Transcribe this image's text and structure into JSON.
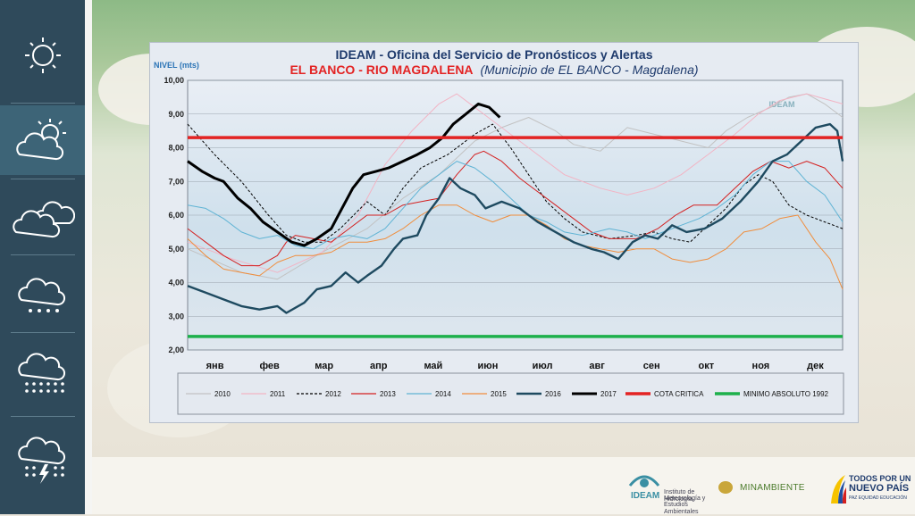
{
  "chart_data": {
    "type": "line",
    "title": "IDEAM - Oficina del Servicio de Pronósticos y Alertas",
    "subtitle_bold": "EL BANCO - RIO MAGDALENA",
    "subtitle_italic": "(Municipio de EL BANCO - Magdalena)",
    "ylabel": "NIVEL (mts)",
    "ylim": [
      2,
      10
    ],
    "yticks": [
      "10,00",
      "9,00",
      "8,00",
      "7,00",
      "6,00",
      "5,00",
      "4,00",
      "3,00",
      "2,00"
    ],
    "months": [
      "янв",
      "фев",
      "мар",
      "апр",
      "май",
      "июн",
      "июл",
      "авг",
      "сен",
      "окт",
      "ноя",
      "дек"
    ],
    "x_day_range": [
      0,
      365
    ],
    "thresholds": [
      {
        "name": "COTA CRITICA",
        "value": 8.3,
        "color": "#e32323"
      },
      {
        "name": "MINIMO ABSOLUTO 1992",
        "value": 2.4,
        "color": "#1db04b"
      }
    ],
    "series": [
      {
        "name": "2010",
        "color": "#c2c2c2",
        "width": 1,
        "dash": "",
        "points": [
          [
            0,
            5.0
          ],
          [
            30,
            4.3
          ],
          [
            50,
            4.1
          ],
          [
            75,
            4.9
          ],
          [
            100,
            5.6
          ],
          [
            120,
            6.5
          ],
          [
            140,
            7.2
          ],
          [
            160,
            8.2
          ],
          [
            175,
            8.6
          ],
          [
            190,
            8.9
          ],
          [
            205,
            8.5
          ],
          [
            215,
            8.1
          ],
          [
            230,
            7.9
          ],
          [
            245,
            8.6
          ],
          [
            260,
            8.4
          ],
          [
            275,
            8.2
          ],
          [
            290,
            8.0
          ],
          [
            300,
            8.5
          ],
          [
            312,
            8.9
          ],
          [
            325,
            9.2
          ],
          [
            335,
            9.5
          ],
          [
            345,
            9.6
          ],
          [
            355,
            9.3
          ],
          [
            365,
            8.9
          ]
        ]
      },
      {
        "name": "2011",
        "color": "#f2b4c4",
        "width": 1,
        "dash": "",
        "points": [
          [
            0,
            5.2
          ],
          [
            25,
            4.7
          ],
          [
            50,
            4.3
          ],
          [
            75,
            4.9
          ],
          [
            95,
            6.0
          ],
          [
            110,
            7.5
          ],
          [
            125,
            8.5
          ],
          [
            140,
            9.3
          ],
          [
            150,
            9.6
          ],
          [
            160,
            9.2
          ],
          [
            175,
            8.6
          ],
          [
            195,
            7.8
          ],
          [
            210,
            7.2
          ],
          [
            230,
            6.8
          ],
          [
            245,
            6.6
          ],
          [
            260,
            6.8
          ],
          [
            275,
            7.2
          ],
          [
            290,
            7.8
          ],
          [
            305,
            8.4
          ],
          [
            318,
            9.0
          ],
          [
            330,
            9.4
          ],
          [
            345,
            9.6
          ],
          [
            365,
            9.3
          ]
        ]
      },
      {
        "name": "2012",
        "color": "#000000",
        "width": 1,
        "dash": "3,2",
        "points": [
          [
            0,
            8.7
          ],
          [
            15,
            7.8
          ],
          [
            30,
            7.0
          ],
          [
            45,
            6.0
          ],
          [
            55,
            5.4
          ],
          [
            65,
            5.2
          ],
          [
            75,
            5.2
          ],
          [
            85,
            5.6
          ],
          [
            100,
            6.4
          ],
          [
            110,
            6.0
          ],
          [
            120,
            6.8
          ],
          [
            130,
            7.4
          ],
          [
            145,
            7.8
          ],
          [
            160,
            8.4
          ],
          [
            170,
            8.7
          ],
          [
            180,
            8.0
          ],
          [
            190,
            7.2
          ],
          [
            200,
            6.4
          ],
          [
            210,
            5.9
          ],
          [
            220,
            5.5
          ],
          [
            235,
            5.3
          ],
          [
            250,
            5.4
          ],
          [
            260,
            5.5
          ],
          [
            270,
            5.3
          ],
          [
            280,
            5.2
          ],
          [
            290,
            5.7
          ],
          [
            300,
            6.2
          ],
          [
            310,
            6.9
          ],
          [
            318,
            7.2
          ],
          [
            326,
            7.0
          ],
          [
            335,
            6.3
          ],
          [
            345,
            6.0
          ],
          [
            355,
            5.8
          ],
          [
            365,
            5.6
          ]
        ]
      },
      {
        "name": "2013",
        "color": "#d42020",
        "width": 1,
        "dash": "",
        "points": [
          [
            0,
            5.6
          ],
          [
            10,
            5.2
          ],
          [
            20,
            4.8
          ],
          [
            30,
            4.5
          ],
          [
            40,
            4.5
          ],
          [
            50,
            4.8
          ],
          [
            55,
            5.2
          ],
          [
            60,
            5.4
          ],
          [
            70,
            5.3
          ],
          [
            80,
            5.2
          ],
          [
            90,
            5.6
          ],
          [
            100,
            6.0
          ],
          [
            110,
            6.0
          ],
          [
            120,
            6.3
          ],
          [
            130,
            6.4
          ],
          [
            140,
            6.5
          ],
          [
            150,
            7.2
          ],
          [
            160,
            7.8
          ],
          [
            165,
            7.9
          ],
          [
            175,
            7.6
          ],
          [
            185,
            7.1
          ],
          [
            195,
            6.7
          ],
          [
            205,
            6.3
          ],
          [
            215,
            5.9
          ],
          [
            225,
            5.5
          ],
          [
            235,
            5.3
          ],
          [
            250,
            5.3
          ],
          [
            262,
            5.6
          ],
          [
            272,
            6.0
          ],
          [
            282,
            6.3
          ],
          [
            295,
            6.3
          ],
          [
            305,
            6.8
          ],
          [
            315,
            7.3
          ],
          [
            325,
            7.6
          ],
          [
            335,
            7.4
          ],
          [
            345,
            7.6
          ],
          [
            355,
            7.4
          ],
          [
            365,
            6.8
          ]
        ]
      },
      {
        "name": "2014",
        "color": "#5fb3d4",
        "width": 1,
        "dash": "",
        "points": [
          [
            0,
            6.3
          ],
          [
            10,
            6.2
          ],
          [
            20,
            5.9
          ],
          [
            30,
            5.5
          ],
          [
            40,
            5.3
          ],
          [
            50,
            5.4
          ],
          [
            60,
            5.1
          ],
          [
            70,
            5.0
          ],
          [
            80,
            5.3
          ],
          [
            90,
            5.4
          ],
          [
            100,
            5.3
          ],
          [
            110,
            5.6
          ],
          [
            120,
            6.2
          ],
          [
            130,
            6.8
          ],
          [
            140,
            7.2
          ],
          [
            150,
            7.6
          ],
          [
            160,
            7.4
          ],
          [
            170,
            7.0
          ],
          [
            180,
            6.5
          ],
          [
            190,
            6.0
          ],
          [
            200,
            5.8
          ],
          [
            210,
            5.5
          ],
          [
            220,
            5.4
          ],
          [
            235,
            5.6
          ],
          [
            245,
            5.5
          ],
          [
            255,
            5.3
          ],
          [
            265,
            5.5
          ],
          [
            275,
            5.7
          ],
          [
            285,
            5.9
          ],
          [
            295,
            6.2
          ],
          [
            305,
            6.6
          ],
          [
            315,
            7.2
          ],
          [
            325,
            7.6
          ],
          [
            335,
            7.6
          ],
          [
            345,
            7.0
          ],
          [
            355,
            6.6
          ],
          [
            365,
            5.8
          ]
        ]
      },
      {
        "name": "2015",
        "color": "#f08d3c",
        "width": 1,
        "dash": "",
        "points": [
          [
            0,
            5.3
          ],
          [
            10,
            4.8
          ],
          [
            20,
            4.4
          ],
          [
            30,
            4.3
          ],
          [
            40,
            4.2
          ],
          [
            50,
            4.6
          ],
          [
            60,
            4.8
          ],
          [
            70,
            4.8
          ],
          [
            80,
            4.9
          ],
          [
            90,
            5.2
          ],
          [
            100,
            5.2
          ],
          [
            110,
            5.3
          ],
          [
            120,
            5.6
          ],
          [
            130,
            6.0
          ],
          [
            140,
            6.3
          ],
          [
            150,
            6.3
          ],
          [
            160,
            6.0
          ],
          [
            170,
            5.8
          ],
          [
            180,
            6.0
          ],
          [
            190,
            6.0
          ],
          [
            200,
            5.7
          ],
          [
            210,
            5.3
          ],
          [
            220,
            5.1
          ],
          [
            230,
            5.0
          ],
          [
            240,
            4.9
          ],
          [
            250,
            5.0
          ],
          [
            260,
            5.0
          ],
          [
            270,
            4.7
          ],
          [
            280,
            4.6
          ],
          [
            290,
            4.7
          ],
          [
            300,
            5.0
          ],
          [
            310,
            5.5
          ],
          [
            320,
            5.6
          ],
          [
            330,
            5.9
          ],
          [
            340,
            6.0
          ],
          [
            350,
            5.2
          ],
          [
            358,
            4.7
          ],
          [
            365,
            3.8
          ]
        ]
      },
      {
        "name": "2016",
        "color": "#1e4a60",
        "width": 2.4,
        "dash": "",
        "points": [
          [
            0,
            3.9
          ],
          [
            10,
            3.7
          ],
          [
            20,
            3.5
          ],
          [
            30,
            3.3
          ],
          [
            40,
            3.2
          ],
          [
            50,
            3.3
          ],
          [
            55,
            3.1
          ],
          [
            65,
            3.4
          ],
          [
            72,
            3.8
          ],
          [
            80,
            3.9
          ],
          [
            88,
            4.3
          ],
          [
            95,
            4.0
          ],
          [
            100,
            4.2
          ],
          [
            108,
            4.5
          ],
          [
            115,
            5.0
          ],
          [
            120,
            5.3
          ],
          [
            128,
            5.4
          ],
          [
            133,
            6.0
          ],
          [
            140,
            6.5
          ],
          [
            146,
            7.1
          ],
          [
            152,
            6.8
          ],
          [
            160,
            6.6
          ],
          [
            166,
            6.2
          ],
          [
            175,
            6.4
          ],
          [
            185,
            6.2
          ],
          [
            195,
            5.8
          ],
          [
            205,
            5.5
          ],
          [
            215,
            5.2
          ],
          [
            225,
            5.0
          ],
          [
            232,
            4.9
          ],
          [
            240,
            4.7
          ],
          [
            248,
            5.2
          ],
          [
            255,
            5.4
          ],
          [
            262,
            5.3
          ],
          [
            270,
            5.7
          ],
          [
            278,
            5.5
          ],
          [
            288,
            5.6
          ],
          [
            298,
            5.9
          ],
          [
            308,
            6.4
          ],
          [
            318,
            7.0
          ],
          [
            326,
            7.6
          ],
          [
            334,
            7.8
          ],
          [
            342,
            8.2
          ],
          [
            350,
            8.6
          ],
          [
            358,
            8.7
          ],
          [
            362,
            8.5
          ],
          [
            365,
            7.6
          ]
        ]
      },
      {
        "name": "2017",
        "color": "#000000",
        "width": 3,
        "dash": "",
        "points": [
          [
            0,
            7.6
          ],
          [
            8,
            7.3
          ],
          [
            15,
            7.1
          ],
          [
            20,
            7.0
          ],
          [
            28,
            6.5
          ],
          [
            35,
            6.2
          ],
          [
            42,
            5.8
          ],
          [
            50,
            5.5
          ],
          [
            58,
            5.2
          ],
          [
            65,
            5.1
          ],
          [
            72,
            5.3
          ],
          [
            80,
            5.6
          ],
          [
            86,
            6.2
          ],
          [
            92,
            6.8
          ],
          [
            98,
            7.2
          ],
          [
            105,
            7.3
          ],
          [
            112,
            7.4
          ],
          [
            120,
            7.6
          ],
          [
            128,
            7.8
          ],
          [
            135,
            8.0
          ],
          [
            142,
            8.3
          ],
          [
            148,
            8.7
          ],
          [
            155,
            9.0
          ],
          [
            162,
            9.3
          ],
          [
            168,
            9.2
          ],
          [
            174,
            8.9
          ]
        ]
      }
    ]
  },
  "legend_labels": {
    "s2010": "2010",
    "s2011": "2011",
    "s2012": "2012",
    "s2013": "2013",
    "s2014": "2014",
    "s2015": "2015",
    "s2016": "2016",
    "s2017": "2017",
    "cota": "COTA CRITICA",
    "minimo": "MINIMO ABSOLUTO 1992"
  },
  "footer": {
    "ideam_name": "IDEAM",
    "ideam_line1": "Instituto de Hidrología,",
    "ideam_line2": "Meteorología y",
    "ideam_line3": "Estudios Ambientales",
    "minambiente": "MINAMBIENTE",
    "todos_line1": "TODOS POR UN",
    "todos_line2": "NUEVO PAÍS",
    "todos_line3": "PAZ  EQUIDAD  EDUCACIÓN"
  },
  "watermark": {
    "text": "IDEAM"
  },
  "sidebar": {
    "items": [
      {
        "icon": "sun-icon"
      },
      {
        "icon": "partly-cloudy-icon"
      },
      {
        "icon": "cloudy-icon"
      },
      {
        "icon": "light-rain-icon"
      },
      {
        "icon": "heavy-rain-icon"
      },
      {
        "icon": "thunderstorm-icon"
      }
    ]
  }
}
